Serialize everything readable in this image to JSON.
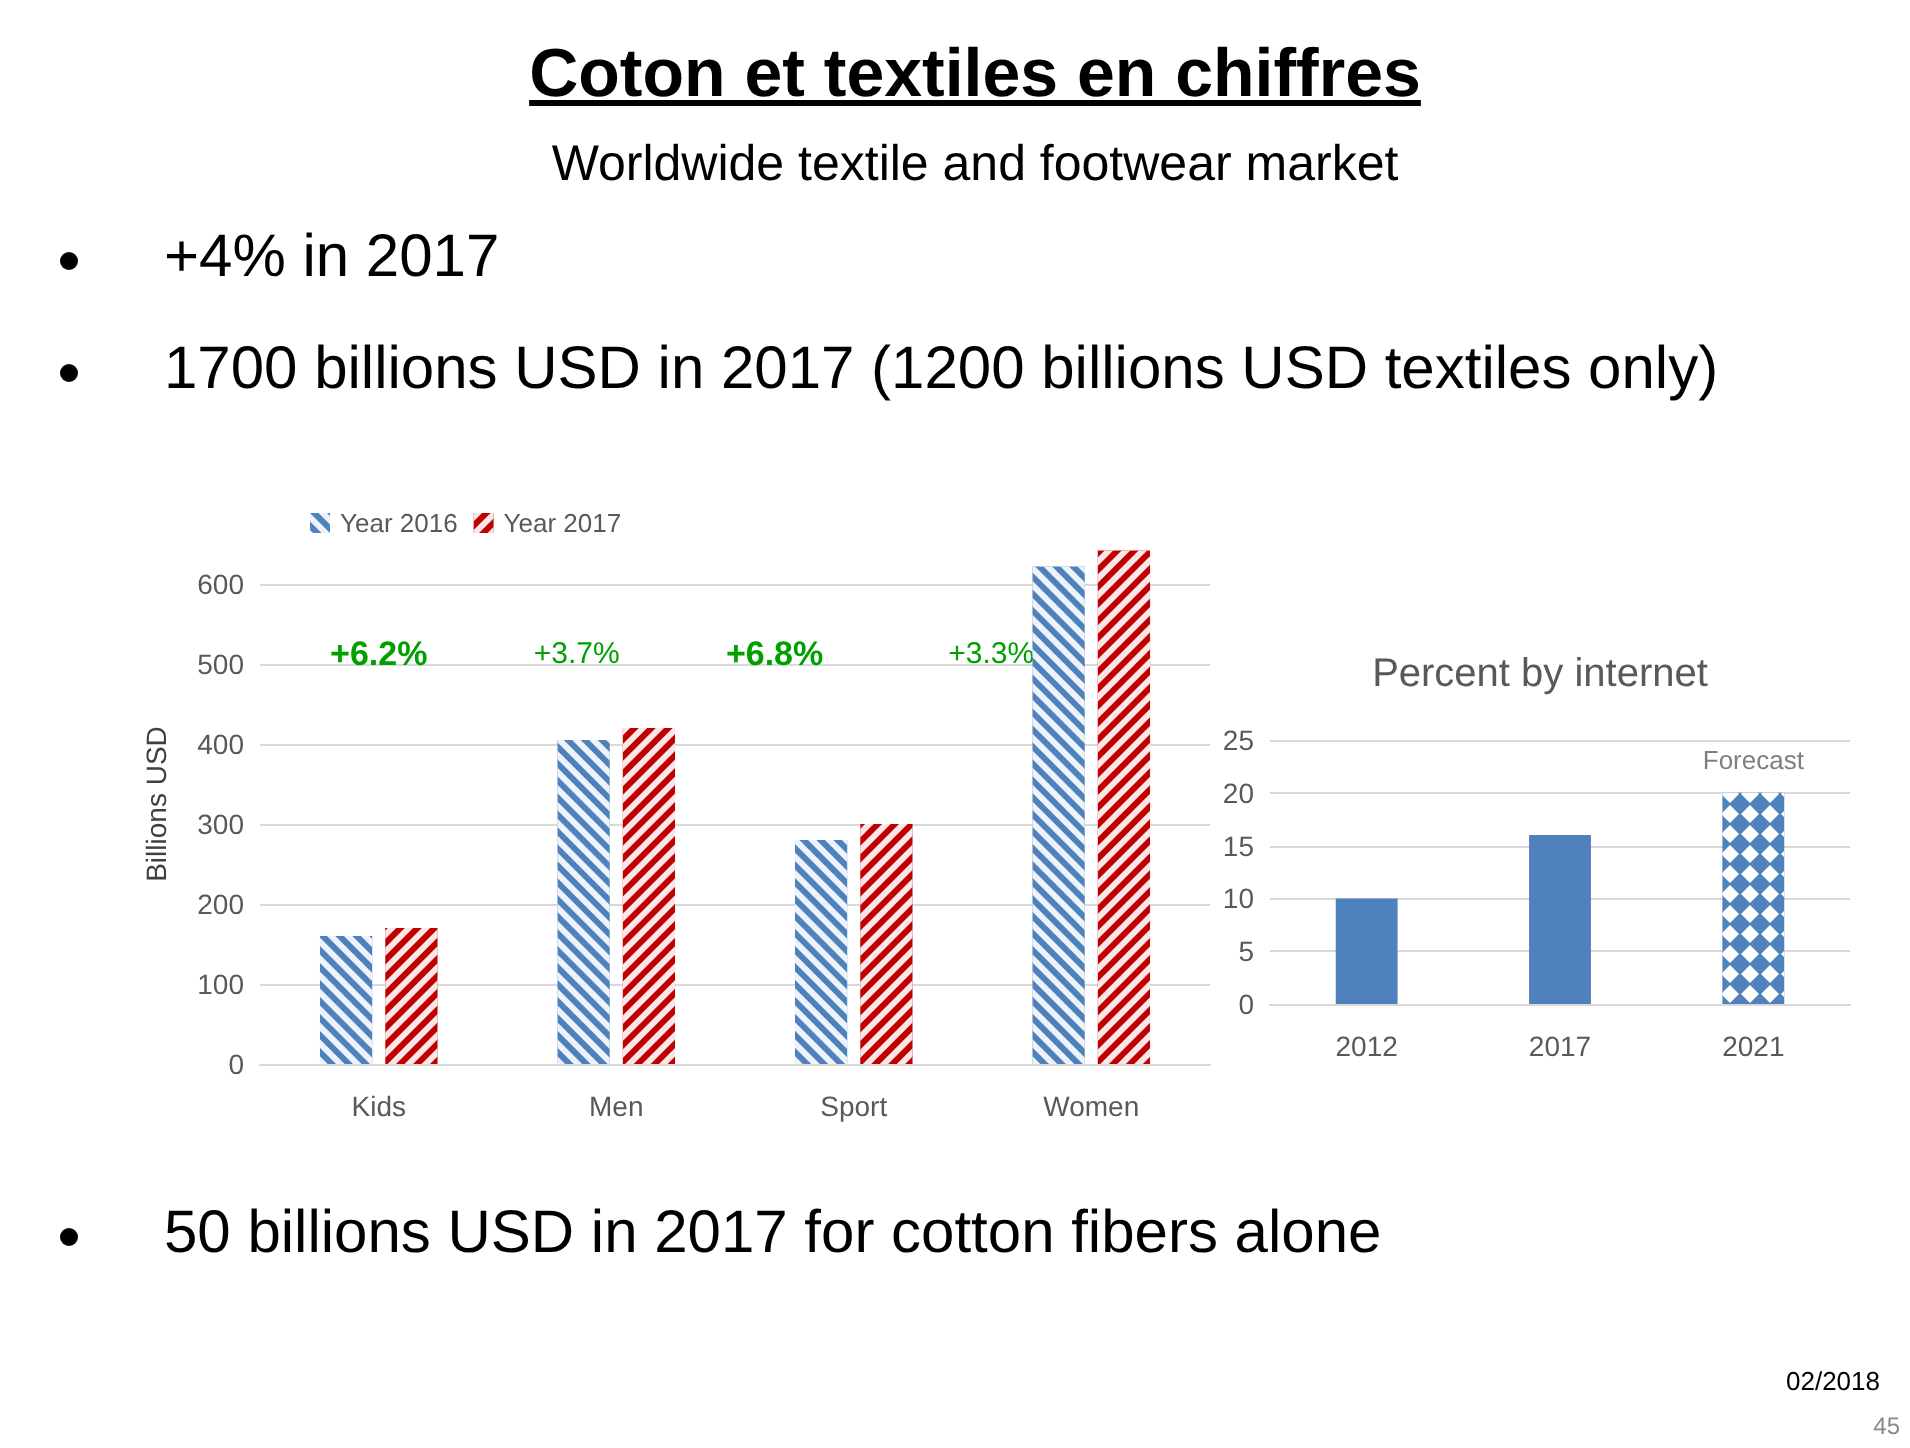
{
  "chart_data": [
    {
      "type": "other",
      "title": "Coton et textiles en chiffres",
      "subtitle": "Worldwide textile and footwear market",
      "annotations": [
        "+4% in 2017",
        "1700 billions USD in 2017 (1200 billions USD textiles only)",
        "50 billions USD in 2017 for cotton fibers alone",
        "02/2018",
        "45"
      ]
    },
    {
      "type": "bar",
      "categories": [
        "Kids",
        "Men",
        "Sport",
        "Women"
      ],
      "ylabel": "Billions USD",
      "series": [
        {
          "name": "Year 2016",
          "color": "#4f81bd",
          "values": [
            160,
            405,
            280,
            622
          ]
        },
        {
          "name": "Year 2017",
          "color": "#c00000",
          "values": [
            170,
            420,
            300,
            642
          ]
        }
      ],
      "ylim": [
        0,
        650
      ],
      "yticks": [
        0,
        100,
        200,
        300,
        400,
        500,
        600
      ],
      "grid": "y",
      "legend": "top left",
      "annotations": [
        "+6.2%",
        "+3.7%",
        "+6.8%",
        "+3.3%"
      ]
    },
    {
      "type": "bar",
      "title": "Percent by internet",
      "categories": [
        "2012",
        "2017",
        "2021"
      ],
      "values": [
        10,
        16,
        20
      ],
      "color": "#4f81bd",
      "ylim": [
        0,
        25
      ],
      "yticks": [
        0,
        5,
        10,
        15,
        20,
        25
      ],
      "grid": "y",
      "annotations": [
        "Forecast"
      ]
    }
  ]
}
